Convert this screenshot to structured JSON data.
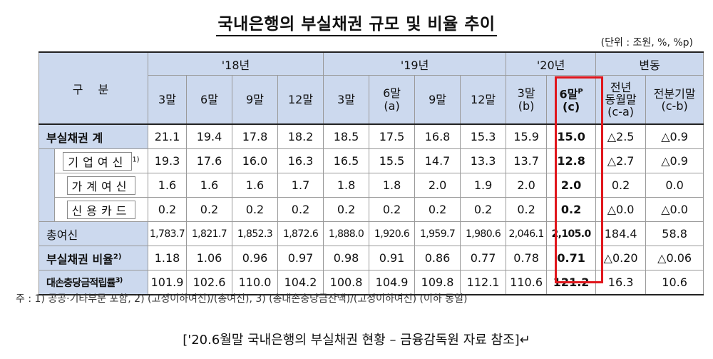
{
  "title": "국내은행의 부실채권 규모 및 비율 추이",
  "unit": "(단위 : 조원, %, %p)",
  "header": {
    "category": "구   분",
    "year18": "'18년",
    "year19": "'19년",
    "year20": "'20년",
    "change": "변동",
    "cols": [
      "3말",
      "6말",
      "9말",
      "12말",
      "3말",
      "6말",
      "9말",
      "12말",
      "3말",
      "6말"
    ],
    "col_notes": [
      "",
      "",
      "",
      "",
      "",
      "(a)",
      "",
      "",
      "(b)",
      "(c)"
    ],
    "col_sup": [
      "",
      "",
      "",
      "",
      "",
      "",
      "",
      "",
      "",
      "P"
    ],
    "change_cols": [
      "전년\n동월말\n(c-a)",
      "전분기말\n(c-b)"
    ]
  },
  "rows": [
    {
      "label": "부실채권 계",
      "sup": "",
      "values": [
        "21.1",
        "19.4",
        "17.8",
        "18.2",
        "18.5",
        "17.5",
        "16.8",
        "15.3",
        "15.9",
        "15.0",
        "△2.5",
        "△0.9"
      ]
    },
    {
      "label": "기업여신",
      "sup": "1)",
      "values": [
        "19.3",
        "17.6",
        "16.0",
        "16.3",
        "16.5",
        "15.5",
        "14.7",
        "13.3",
        "13.7",
        "12.8",
        "△2.7",
        "△0.9"
      ]
    },
    {
      "label": "가계여신",
      "sup": "",
      "values": [
        "1.6",
        "1.6",
        "1.6",
        "1.7",
        "1.8",
        "1.8",
        "2.0",
        "1.9",
        "2.0",
        "2.0",
        "0.2",
        "0.0"
      ]
    },
    {
      "label": "신용카드",
      "sup": "",
      "values": [
        "0.2",
        "0.2",
        "0.2",
        "0.2",
        "0.2",
        "0.2",
        "0.2",
        "0.2",
        "0.2",
        "0.2",
        "△0.0",
        "△0.0"
      ]
    },
    {
      "label": "총여신",
      "sup": "",
      "values": [
        "1,783.7",
        "1,821.7",
        "1,852.3",
        "1,872.6",
        "1,888.0",
        "1,920.6",
        "1,959.7",
        "1,980.6",
        "2,046.1",
        "2,105.0",
        "184.4",
        "58.8"
      ]
    },
    {
      "label": "부실채권 비율",
      "sup": "2)",
      "values": [
        "1.18",
        "1.06",
        "0.96",
        "0.97",
        "0.98",
        "0.91",
        "0.86",
        "0.77",
        "0.78",
        "0.71",
        "△0.20",
        "△0.06"
      ]
    },
    {
      "label": "대손충당금적립률",
      "sup": "3)",
      "values": [
        "101.9",
        "102.6",
        "110.0",
        "104.2",
        "100.8",
        "104.9",
        "109.8",
        "112.1",
        "110.6",
        "121.2",
        "16.3",
        "10.6"
      ]
    }
  ],
  "note": "주 : 1) 공공·기타부문 포함, 2) (고정이하여신)/(총여신), 3) (총대손충당금잔액)/(고정이하여신) (이하 동일)",
  "caption": "['20.6월말 국내은행의 부실채권 현황 – 금융감독원 자료 참조]↵",
  "highlight_color": "#e0161c",
  "header_bg": "#ccd9ee"
}
